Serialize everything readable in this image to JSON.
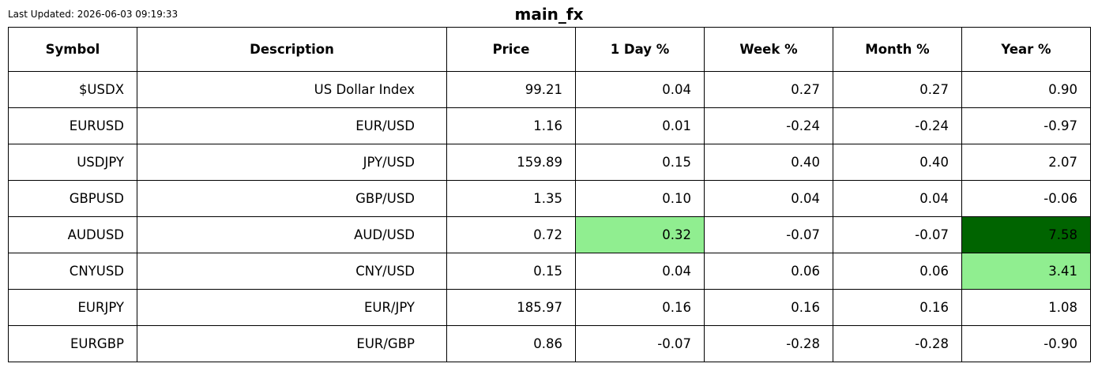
{
  "header": {
    "updated": "Last Updated: 2026-06-03 09:19:33",
    "title": "main_fx"
  },
  "table": {
    "columns": [
      "Symbol",
      "Description",
      "Price",
      "1 Day %",
      "Week %",
      "Month %",
      "Year %"
    ],
    "rows": [
      [
        "$USDX",
        "US Dollar Index",
        "99.21",
        "0.04",
        "0.27",
        "0.27",
        "0.90"
      ],
      [
        "EURUSD",
        "EUR/USD",
        "1.16",
        "0.01",
        "-0.24",
        "-0.24",
        "-0.97"
      ],
      [
        "USDJPY",
        "JPY/USD",
        "159.89",
        "0.15",
        "0.40",
        "0.40",
        "2.07"
      ],
      [
        "GBPUSD",
        "GBP/USD",
        "1.35",
        "0.10",
        "0.04",
        "0.04",
        "-0.06"
      ],
      [
        "AUDUSD",
        "AUD/USD",
        "0.72",
        "0.32",
        "-0.07",
        "-0.07",
        "7.58"
      ],
      [
        "CNYUSD",
        "CNY/USD",
        "0.15",
        "0.04",
        "0.06",
        "0.06",
        "3.41"
      ],
      [
        "EURJPY",
        "EUR/JPY",
        "185.97",
        "0.16",
        "0.16",
        "0.16",
        "1.08"
      ],
      [
        "EURGBP",
        "EUR/GBP",
        "0.86",
        "-0.07",
        "-0.28",
        "-0.28",
        "-0.90"
      ]
    ],
    "highlights": [
      {
        "row": "AUDUSD",
        "column": "1 Day %",
        "color": "#90ee90"
      },
      {
        "row": "AUDUSD",
        "column": "Year %",
        "color": "#006400"
      },
      {
        "row": "CNYUSD",
        "column": "Year %",
        "color": "#90ee90"
      }
    ]
  }
}
